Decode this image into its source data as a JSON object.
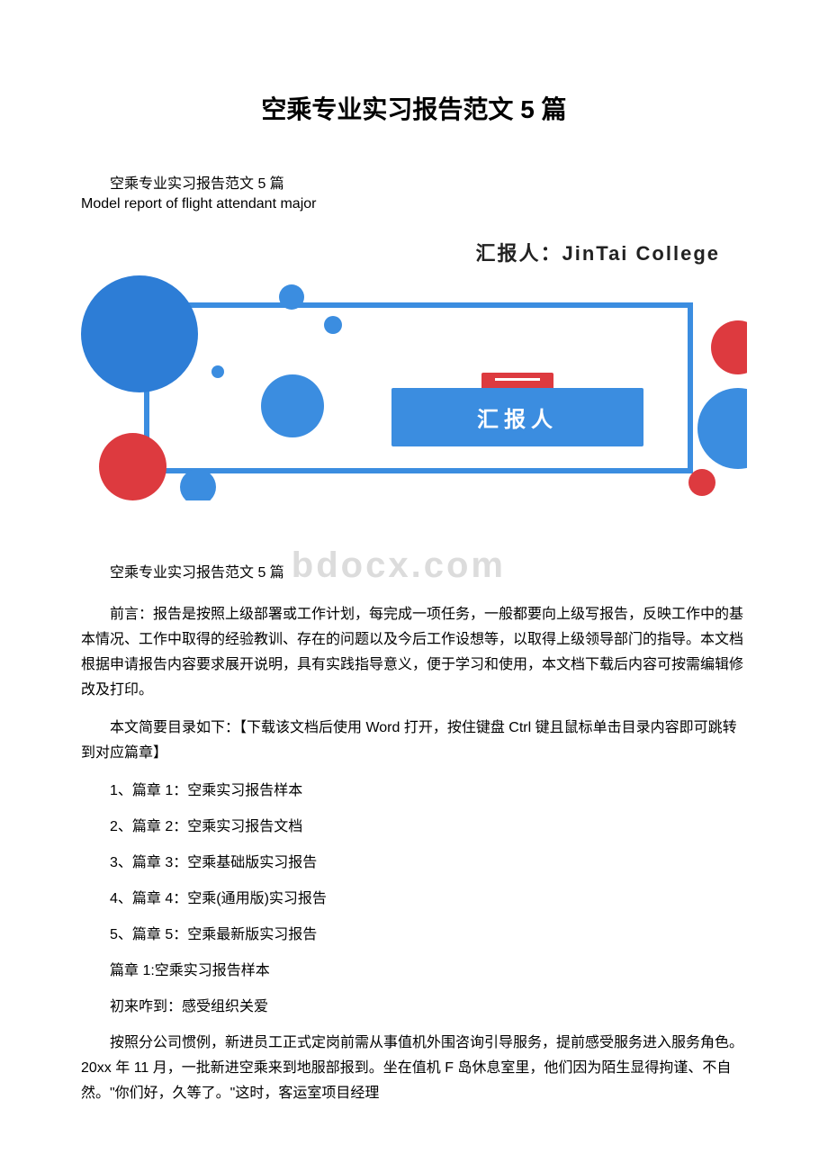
{
  "title": "空乘专业实习报告范文 5 篇",
  "subtitle_cn": "空乘专业实习报告范文 5 篇",
  "subtitle_en": "Model report of flight attendant major",
  "graphic": {
    "reporter_prefix": "汇报人：",
    "reporter_name": "JinTai  College",
    "label_text": "汇报人",
    "colors": {
      "blue": "#3b8de0",
      "blue_dark": "#2d7dd6",
      "red": "#dd3a3f",
      "border": "#3b8de0"
    }
  },
  "watermark": "bdocx.com",
  "watermark_prefix": "空乘专业实习报告范文 5 篇",
  "foreword": "前言：报告是按照上级部署或工作计划，每完成一项任务，一般都要向上级写报告，反映工作中的基本情况、工作中取得的经验教训、存在的问题以及今后工作设想等，以取得上级领导部门的指导。本文档根据申请报告内容要求展开说明，具有实践指导意义，便于学习和使用，本文档下载后内容可按需编辑修改及打印。",
  "toc_intro": "本文简要目录如下：【下载该文档后使用 Word 打开，按住键盘 Ctrl 键且鼠标单击目录内容即可跳转到对应篇章】",
  "toc": [
    "1、篇章 1：空乘实习报告样本",
    "2、篇章 2：空乘实习报告文档",
    "3、篇章 3：空乘基础版实习报告",
    "4、篇章 4：空乘(通用版)实习报告",
    "5、篇章 5：空乘最新版实习报告"
  ],
  "chapter1_heading": "篇章 1:空乘实习报告样本",
  "chapter1_sub": "初来咋到：感受组织关爱",
  "chapter1_body": "按照分公司惯例，新进员工正式定岗前需从事值机外围咨询引导服务，提前感受服务进入服务角色。20xx 年 11 月，一批新进空乘来到地服部报到。坐在值机 F 岛休息室里，他们因为陌生显得拘谨、不自然。\"你们好，久等了。\"这时，客运室项目经理"
}
